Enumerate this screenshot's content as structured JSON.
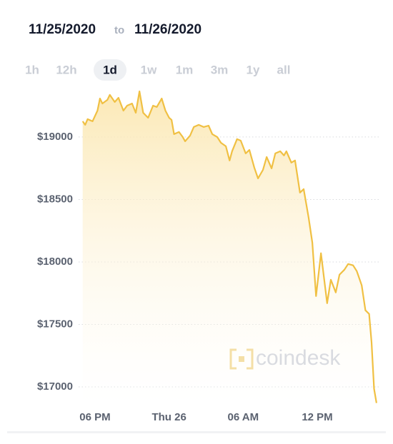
{
  "header": {
    "from": "11/25/2020",
    "joiner": "to",
    "to": "11/26/2020"
  },
  "range_tabs": [
    "1h",
    "12h",
    "1d",
    "1w",
    "1m",
    "3m",
    "1y",
    "all"
  ],
  "selected_tab": "1d",
  "chart_data": {
    "type": "area-line",
    "x": [
      17.0,
      17.2,
      17.4,
      17.8,
      18.2,
      18.4,
      18.6,
      19.0,
      19.2,
      19.6,
      19.9,
      20.3,
      20.6,
      21.0,
      21.3,
      21.6,
      21.9,
      22.3,
      22.7,
      23.0,
      23.4,
      23.7,
      24.0,
      24.2,
      24.4,
      24.8,
      25.1,
      25.3,
      25.7,
      26.0,
      26.4,
      26.8,
      27.2,
      27.5,
      27.9,
      28.2,
      28.6,
      28.9,
      29.1,
      29.5,
      29.8,
      30.2,
      30.5,
      30.9,
      31.2,
      31.6,
      31.9,
      32.3,
      32.6,
      33.0,
      33.3,
      33.5,
      33.9,
      34.2,
      34.6,
      34.9,
      35.3,
      35.6,
      35.9,
      36.3,
      36.8,
      37.1,
      37.5,
      37.8,
      38.2,
      38.5,
      38.9,
      39.2,
      39.6,
      39.9,
      40.2,
      40.4,
      40.6,
      40.8
    ],
    "values": [
      19126,
      19097,
      19143,
      19126,
      19211,
      19308,
      19268,
      19297,
      19337,
      19280,
      19314,
      19211,
      19251,
      19268,
      19194,
      19365,
      19194,
      19154,
      19251,
      19240,
      19308,
      19211,
      19154,
      19137,
      19023,
      19040,
      19000,
      18966,
      19011,
      19080,
      19097,
      19080,
      19091,
      19023,
      19000,
      18954,
      18926,
      18812,
      18886,
      18983,
      18971,
      18869,
      18897,
      18755,
      18669,
      18737,
      18840,
      18749,
      18869,
      18886,
      18852,
      18886,
      18795,
      18812,
      18555,
      18583,
      18355,
      18155,
      17727,
      18070,
      17670,
      17858,
      17756,
      17898,
      17938,
      17984,
      17973,
      17927,
      17813,
      17613,
      17584,
      17356,
      16985,
      16871
    ],
    "color": "#f0c043",
    "xlim": [
      17,
      41
    ],
    "xticks": [
      {
        "value": 18,
        "label": "06 PM"
      },
      {
        "value": 24,
        "label": "Thu 26"
      },
      {
        "value": 30,
        "label": "06 AM"
      },
      {
        "value": 36,
        "label": "12 PM"
      }
    ],
    "ylim": [
      16850,
      19400
    ],
    "yticks": [
      {
        "value": 17000,
        "label": "$17000"
      },
      {
        "value": 17500,
        "label": "$17500"
      },
      {
        "value": 18000,
        "label": "$18000"
      },
      {
        "value": 18500,
        "label": "$18500"
      },
      {
        "value": 19000,
        "label": "$19000"
      }
    ],
    "grid": true,
    "watermark": "coindesk"
  }
}
